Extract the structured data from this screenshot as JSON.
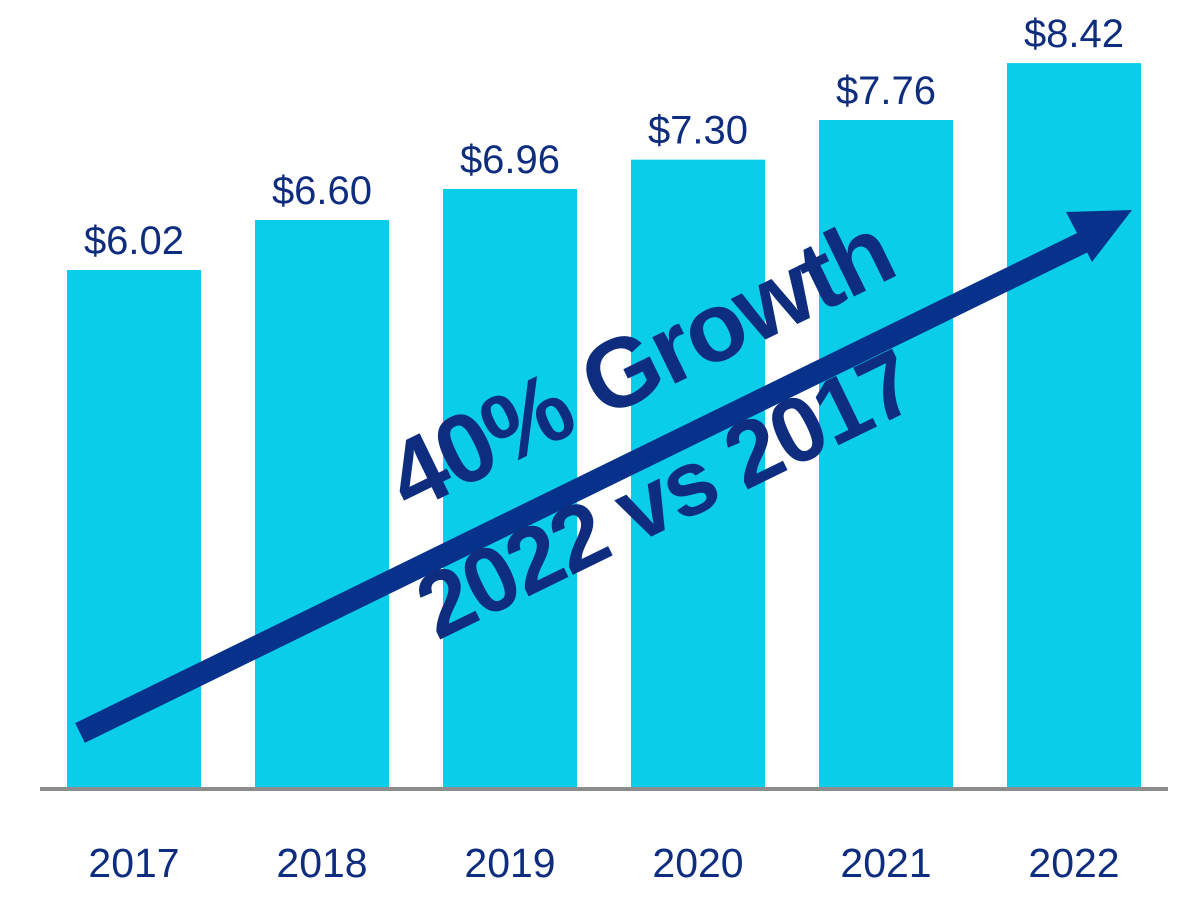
{
  "chart_data": {
    "type": "bar",
    "categories": [
      "2017",
      "2018",
      "2019",
      "2020",
      "2021",
      "2022"
    ],
    "values": [
      6.02,
      6.6,
      6.96,
      7.3,
      7.76,
      8.42
    ],
    "value_labels": [
      "$6.02",
      "$6.60",
      "$6.96",
      "$7.30",
      "$7.76",
      "$8.42"
    ],
    "title": "",
    "xlabel": "",
    "ylabel": "",
    "grid": false,
    "legend": "none",
    "annotation": {
      "line1": "40% Growth",
      "line2": "2022 vs 2017"
    }
  },
  "colors": {
    "bar": "#0ACDE9",
    "text": "#0E2D7E",
    "axis": "#8C8C8C",
    "arrow": "#06328C"
  }
}
